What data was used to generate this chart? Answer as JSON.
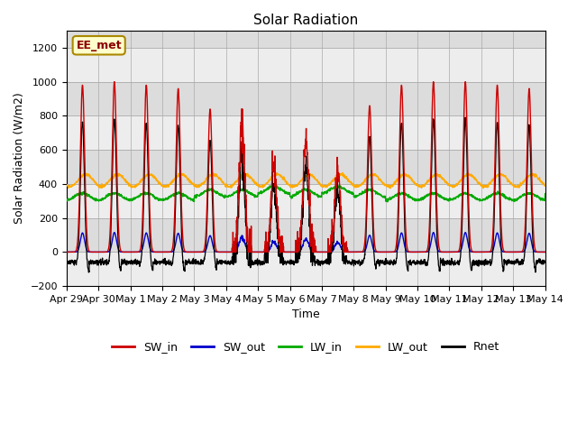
{
  "title": "Solar Radiation",
  "xlabel": "Time",
  "ylabel": "Solar Radiation (W/m2)",
  "ylim": [
    -200,
    1300
  ],
  "yticks": [
    -200,
    0,
    200,
    400,
    600,
    800,
    1000,
    1200
  ],
  "num_points": 2160,
  "annotation_text": "EE_met",
  "bg_color": "#dcdcdc",
  "colors": {
    "SW_in": "#cc0000",
    "SW_out": "#0000cc",
    "LW_in": "#00aa00",
    "LW_out": "#ffaa00",
    "Rnet": "#000000"
  },
  "x_tick_labels": [
    "Apr 29",
    "Apr 30",
    "May 1",
    "May 2",
    "May 3",
    "May 4",
    "May 5",
    "May 6",
    "May 7",
    "May 8",
    "May 9",
    "May 10",
    "May 11",
    "May 12",
    "May 13",
    "May 14"
  ],
  "legend_labels": [
    "SW_in",
    "SW_out",
    "LW_in",
    "LW_out",
    "Rnet"
  ],
  "day_peaks_sw_in": [
    980,
    1000,
    980,
    960,
    840,
    750,
    500,
    650,
    490,
    860,
    980,
    1000,
    1000,
    980,
    960,
    50
  ],
  "lw_in_base": 350,
  "lw_out_base": 420
}
